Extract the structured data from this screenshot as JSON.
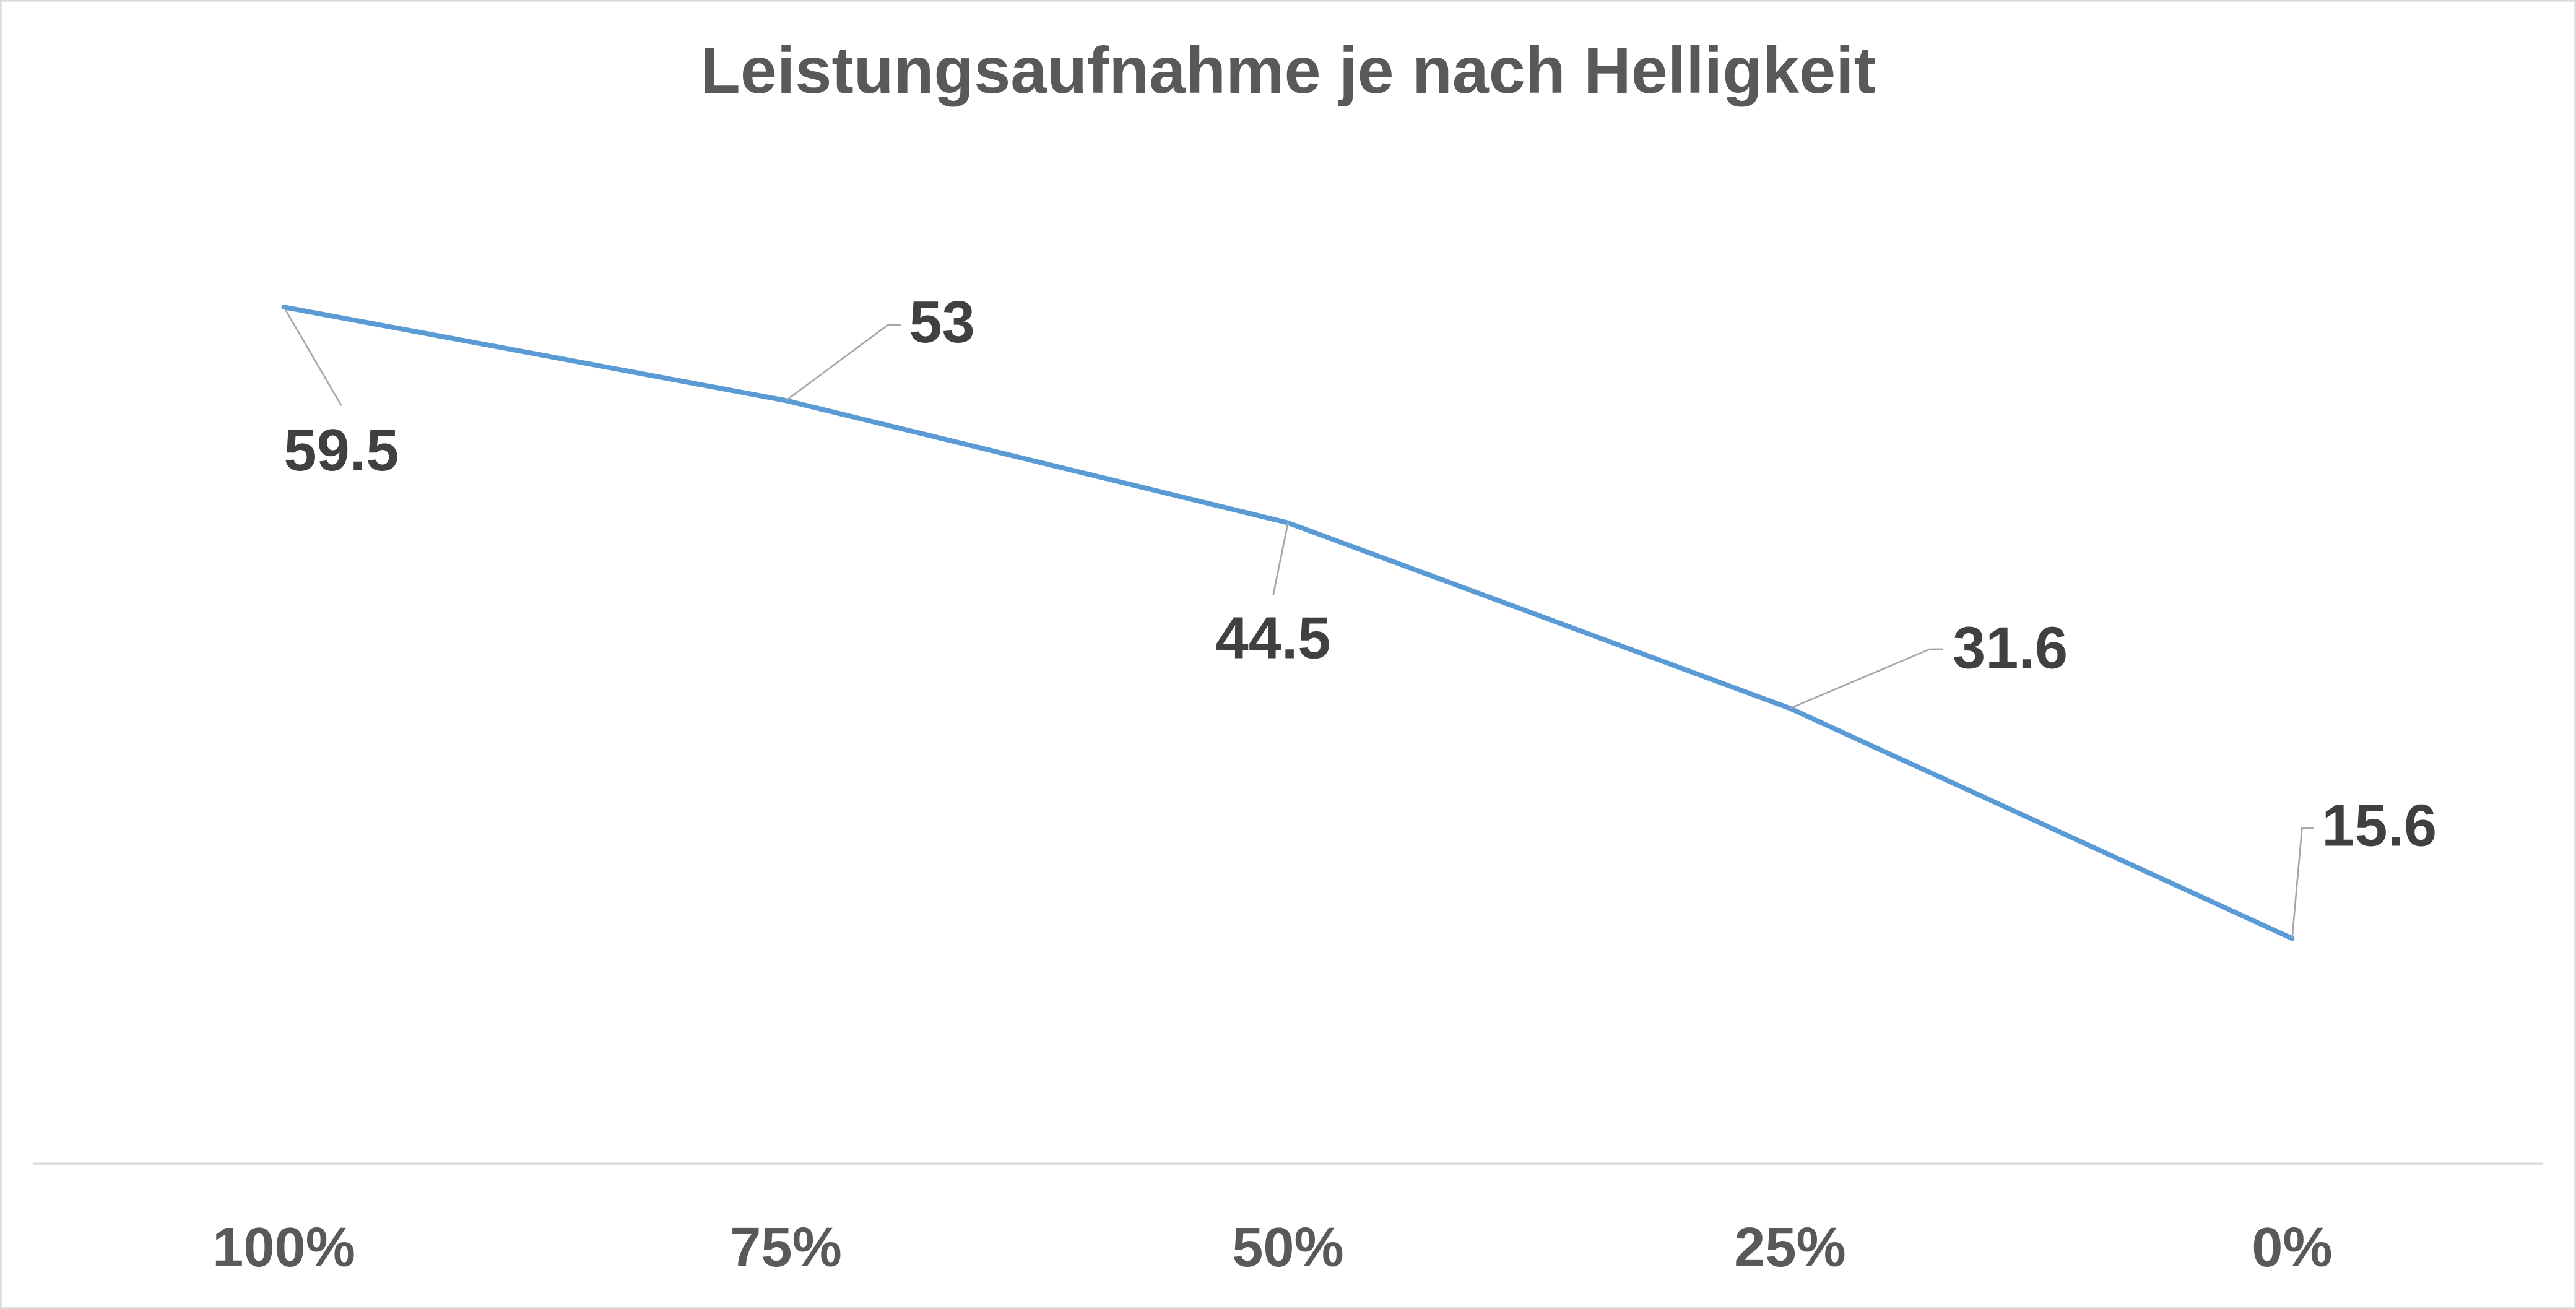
{
  "chart_data": {
    "type": "line",
    "title": "Leistungsaufnahme je nach Helligkeit",
    "categories": [
      "100%",
      "75%",
      "50%",
      "25%",
      "0%"
    ],
    "values": [
      59.5,
      53,
      44.5,
      31.6,
      15.6
    ],
    "color": "#5b9bd5",
    "ylim": [
      0,
      70
    ],
    "grid": false
  }
}
